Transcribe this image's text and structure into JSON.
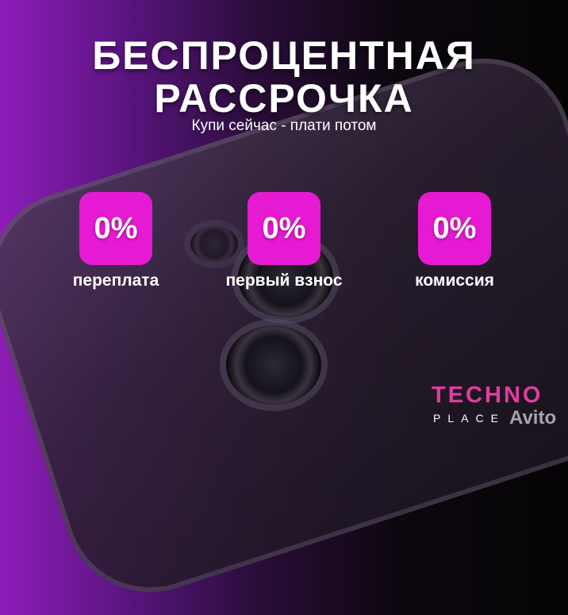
{
  "headline": {
    "line1": "БЕСПРОЦЕНТНАЯ",
    "line2": "РАССРОЧКА",
    "subtitle": "Купи сейчас - плати потом"
  },
  "features": [
    {
      "value": "0%",
      "label": "переплата"
    },
    {
      "value": "0%",
      "label": "первый взнос"
    },
    {
      "value": "0%",
      "label": "комиссия"
    }
  ],
  "brand": {
    "name": "TECHNO",
    "sub": "PLACE",
    "watermark": "Avito"
  },
  "colors": {
    "accent": "#e61ad2",
    "logo": "#e03d9e",
    "background_left": "#8e1db8",
    "background_right": "#050405"
  }
}
